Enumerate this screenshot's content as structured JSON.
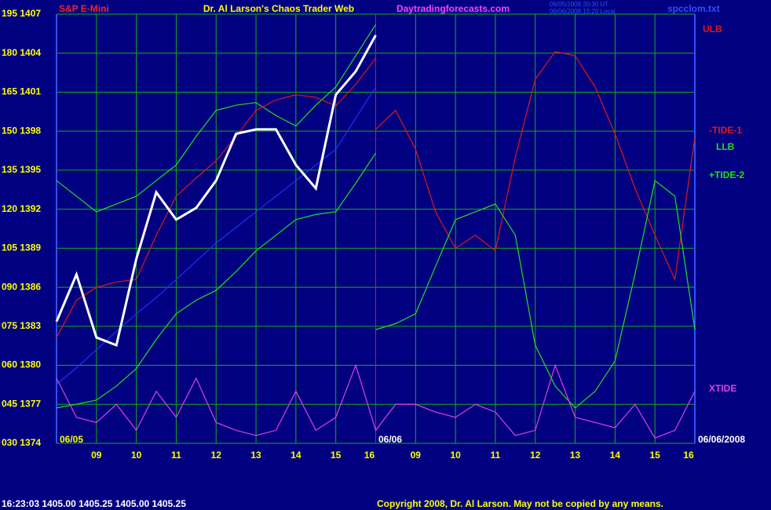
{
  "header": {
    "left": "S&P E-Mini",
    "title": "Dr. Al Larson's Chaos Trader Web",
    "site": "Daytradingforecasts.com",
    "time_ut": "06/05/2008 20:30 UT",
    "time_local": "06/06/2008 15:20 Local",
    "file": "spcclom.txt"
  },
  "chart_data": {
    "type": "line",
    "categories": [
      null,
      null,
      "09",
      null,
      "10",
      null,
      "11",
      null,
      "12",
      null,
      "13",
      null,
      "14",
      null,
      "15",
      null,
      "16",
      null,
      "09",
      null,
      "10",
      null,
      "11",
      null,
      "12",
      null,
      "13",
      null,
      "14",
      null,
      "15",
      null,
      "16"
    ],
    "ylim": [
      30,
      195
    ],
    "yticks": [
      {
        "value": 195,
        "label": "195 1407"
      },
      {
        "value": 180,
        "label": "180 1404"
      },
      {
        "value": 165,
        "label": "165 1401"
      },
      {
        "value": 150,
        "label": "150 1398"
      },
      {
        "value": 135,
        "label": "135 1395"
      },
      {
        "value": 120,
        "label": "120 1392"
      },
      {
        "value": 105,
        "label": "105 1389"
      },
      {
        "value": 90,
        "label": "090 1386"
      },
      {
        "value": 75,
        "label": "075 1383"
      },
      {
        "value": 60,
        "label": "060 1380"
      },
      {
        "value": 45,
        "label": "045 1377"
      },
      {
        "value": 30,
        "label": "030 1374"
      }
    ],
    "grid": true,
    "series": [
      {
        "color": "#2030ff",
        "values": [
          52.6,
          59,
          66,
          73,
          79.8,
          86,
          93,
          100,
          107,
          113,
          119,
          125,
          131,
          137,
          143,
          155,
          167,
          null,
          null,
          null,
          null,
          null,
          null,
          null,
          null,
          null,
          null,
          null,
          null,
          null,
          null,
          null,
          null
        ]
      },
      {
        "color": "#20e020",
        "values": [
          131,
          125,
          119,
          122,
          125,
          131,
          137,
          148,
          158,
          160,
          161,
          156,
          152,
          160,
          167,
          179,
          191,
          null,
          null,
          null,
          null,
          null,
          null,
          null,
          null,
          null,
          null,
          null,
          null,
          null,
          null,
          null,
          null
        ]
      },
      {
        "name": "ULB",
        "color": "#e01818",
        "values": [
          70.7,
          85,
          90,
          92,
          93,
          110,
          125,
          132,
          138.6,
          148,
          158,
          162,
          164,
          163,
          159.7,
          168,
          178,
          null,
          null,
          null,
          null,
          null,
          null,
          null,
          null,
          null,
          null,
          null,
          null,
          null,
          null,
          null,
          null
        ]
      },
      {
        "name": "-TIDE-1",
        "color": "#e01818",
        "values": [
          null,
          null,
          null,
          null,
          null,
          null,
          null,
          null,
          null,
          null,
          null,
          null,
          null,
          null,
          null,
          null,
          150.7,
          158,
          143,
          119,
          105,
          110,
          104,
          140,
          170,
          180.6,
          179,
          167,
          149,
          128,
          110,
          93,
          147.7
        ]
      },
      {
        "name": "LLB",
        "color": "#20e020",
        "values": [
          43.6,
          45,
          46.6,
          52,
          58.7,
          70,
          79.8,
          85,
          88.8,
          96,
          104,
          110,
          116,
          118,
          119,
          130,
          141.6,
          null,
          null,
          null,
          null,
          null,
          null,
          null,
          null,
          null,
          null,
          null,
          null,
          null,
          null,
          null,
          null
        ]
      },
      {
        "name": "+TIDE-2",
        "color": "#20e020",
        "values": [
          null,
          null,
          null,
          null,
          null,
          null,
          null,
          null,
          null,
          null,
          null,
          null,
          null,
          null,
          null,
          null,
          73.7,
          76,
          79.8,
          98,
          116,
          119,
          122,
          110,
          67.7,
          52,
          43.6,
          50,
          61.7,
          95,
          131,
          125,
          73.7
        ]
      },
      {
        "name": "XTIDE",
        "color": "#e040e0",
        "values": [
          55,
          40,
          38,
          45,
          35,
          50,
          40,
          55,
          38,
          35,
          33,
          35,
          50,
          35,
          40,
          60,
          35,
          45,
          45,
          42,
          40,
          45,
          42,
          33,
          35,
          60,
          40,
          38,
          36,
          45,
          32,
          35,
          50
        ]
      },
      {
        "color": "#ffffff",
        "values": [
          76.8,
          94.9,
          70.7,
          67.7,
          100.9,
          126.5,
          116,
          120.5,
          131,
          149,
          150.7,
          150.7,
          137,
          128,
          164,
          173,
          186.9,
          null,
          null,
          null,
          null,
          null,
          null,
          null,
          null,
          null,
          null,
          null,
          null,
          null,
          null,
          null,
          null
        ]
      }
    ],
    "annotations": [
      "06/05",
      "06/06",
      "06/06/2008"
    ]
  },
  "footer": {
    "quote": "16:23:03  1405.00 1405.25 1405.00 1405.25",
    "copyright": "Copyright 2008, Dr. Al Larson. May not be copied by any means."
  }
}
